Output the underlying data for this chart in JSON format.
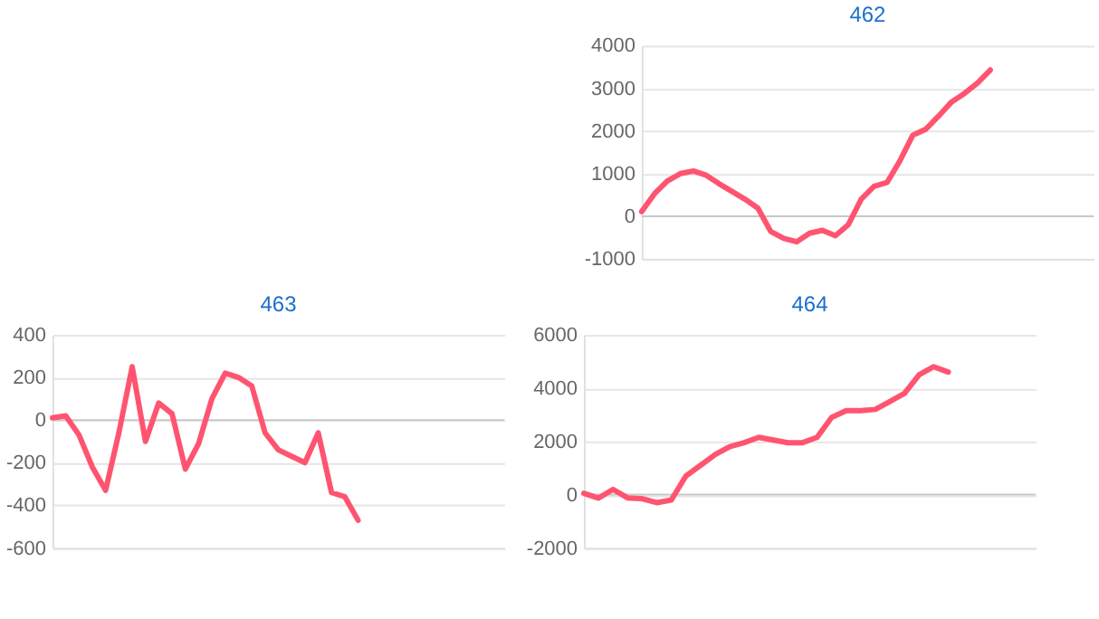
{
  "chart_data": [
    {
      "type": "line",
      "title": "462",
      "categories": [
        null,
        null,
        null,
        null,
        null,
        null,
        null,
        null,
        null,
        null,
        null,
        null,
        null,
        null,
        null,
        null,
        null,
        null,
        null,
        null,
        null,
        null,
        null,
        null,
        null,
        null,
        null,
        null,
        null,
        null,
        null,
        null,
        null,
        null,
        null,
        null
      ],
      "series": [
        {
          "color": "#ff5470",
          "values": [
            110,
            530,
            830,
            1000,
            1060,
            960,
            760,
            580,
            400,
            190,
            -360,
            -520,
            -600,
            -400,
            -330,
            -460,
            -200,
            400,
            700,
            790,
            1300,
            1900,
            2040,
            2350,
            2680,
            2880,
            3120,
            3430,
            null,
            null,
            null,
            null,
            null,
            null,
            null,
            null
          ]
        }
      ],
      "ylim": [
        -1000,
        4000
      ],
      "yticks": [
        -1000,
        0,
        1000,
        2000,
        3000,
        4000
      ],
      "grid": "y",
      "tick_labels": "y",
      "line_style": "solid",
      "marker": "none",
      "ref_lines": [
        {
          "axis": "y",
          "value": 0,
          "color": "#c8c8c8"
        }
      ]
    },
    {
      "type": "line",
      "title": "463",
      "categories": [
        null,
        null,
        null,
        null,
        null,
        null,
        null,
        null,
        null,
        null,
        null,
        null,
        null,
        null,
        null,
        null,
        null,
        null,
        null,
        null,
        null,
        null,
        null,
        null,
        null,
        null,
        null,
        null,
        null,
        null,
        null,
        null,
        null,
        null,
        null
      ],
      "series": [
        {
          "color": "#ff5470",
          "values": [
            10,
            20,
            -70,
            -220,
            -330,
            -60,
            250,
            -100,
            80,
            30,
            -230,
            -110,
            100,
            220,
            200,
            160,
            -60,
            -140,
            -170,
            -200,
            -60,
            -340,
            -360,
            -470,
            null,
            null,
            null,
            null,
            null,
            null,
            null,
            null,
            null,
            null,
            null
          ]
        }
      ],
      "ylim": [
        -600,
        400
      ],
      "yticks": [
        -600,
        -400,
        -200,
        0,
        200,
        400
      ],
      "grid": "y",
      "tick_labels": "y",
      "line_style": "solid",
      "marker": "none",
      "ref_lines": [
        {
          "axis": "y",
          "value": 0,
          "color": "#c8c8c8"
        }
      ]
    },
    {
      "type": "line",
      "title": "464",
      "categories": [
        null,
        null,
        null,
        null,
        null,
        null,
        null,
        null,
        null,
        null,
        null,
        null,
        null,
        null,
        null,
        null,
        null,
        null,
        null,
        null,
        null,
        null,
        null,
        null,
        null,
        null,
        null,
        null,
        null,
        null,
        null,
        null
      ],
      "series": [
        {
          "color": "#ff5470",
          "values": [
            50,
            -130,
            200,
            -120,
            -150,
            -300,
            -200,
            700,
            1100,
            1500,
            1800,
            1950,
            2150,
            2050,
            1950,
            1950,
            2150,
            2900,
            3150,
            3150,
            3200,
            3500,
            3800,
            4500,
            4800,
            4600,
            null,
            null,
            null,
            null,
            null,
            null
          ]
        }
      ],
      "ylim": [
        -2000,
        6000
      ],
      "yticks": [
        -2000,
        0,
        2000,
        4000,
        6000
      ],
      "grid": "y",
      "tick_labels": "y",
      "line_style": "solid",
      "marker": "none",
      "ref_lines": [
        {
          "axis": "y",
          "value": 0,
          "color": "#c8c8c8"
        }
      ]
    }
  ]
}
